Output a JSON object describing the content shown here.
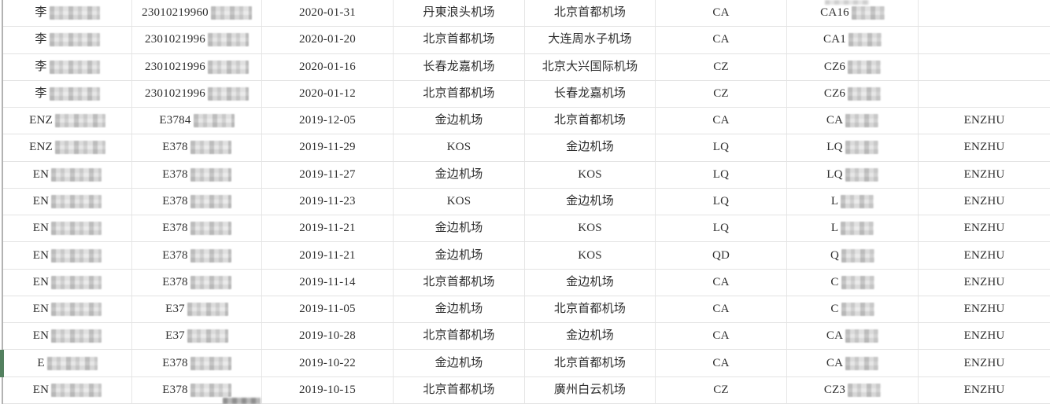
{
  "colors": {
    "background": "#ffffff",
    "grid_line": "#e3e3e3",
    "left_edge_line": "#b3b3b3",
    "row_marker_green": "#53805f",
    "text": "#2e2e2e",
    "mosaic_gray": "#dddddd"
  },
  "artifacts": {
    "selected_row_number": 14,
    "top_smudge": "redaction-bleed",
    "bottom_smudge": "redaction-bleed"
  },
  "table": {
    "column_keys": [
      "name",
      "id_number",
      "date",
      "departure",
      "arrival",
      "airline",
      "flight",
      "passenger"
    ],
    "redacted_columns": [
      "name",
      "id_number",
      "flight"
    ],
    "rows": [
      {
        "name": "李",
        "id_number": "23010219960",
        "date": "2020-01-31",
        "departure": "丹東浪头机场",
        "arrival": "北京首都机场",
        "airline": "CA",
        "flight": "CA16",
        "passenger": ""
      },
      {
        "name": "李",
        "id_number": "2301021996",
        "date": "2020-01-20",
        "departure": "北京首都机场",
        "arrival": "大连周水子机场",
        "airline": "CA",
        "flight": "CA1",
        "passenger": ""
      },
      {
        "name": "李",
        "id_number": "2301021996",
        "date": "2020-01-16",
        "departure": "长春龙嘉机场",
        "arrival": "北京大兴国际机场",
        "airline": "CZ",
        "flight": "CZ6",
        "passenger": ""
      },
      {
        "name": "李",
        "id_number": "2301021996",
        "date": "2020-01-12",
        "departure": "北京首都机场",
        "arrival": "长春龙嘉机场",
        "airline": "CZ",
        "flight": "CZ6",
        "passenger": ""
      },
      {
        "name": "ENZ",
        "id_number": "E3784",
        "date": "2019-12-05",
        "departure": "金边机场",
        "arrival": "北京首都机场",
        "airline": "CA",
        "flight": "CA",
        "passenger": "ENZHU"
      },
      {
        "name": "ENZ",
        "id_number": "E378",
        "date": "2019-11-29",
        "departure": "KOS",
        "arrival": "金边机场",
        "airline": "LQ",
        "flight": "LQ",
        "passenger": "ENZHU"
      },
      {
        "name": "EN",
        "id_number": "E378",
        "date": "2019-11-27",
        "departure": "金边机场",
        "arrival": "KOS",
        "airline": "LQ",
        "flight": "LQ",
        "passenger": "ENZHU"
      },
      {
        "name": "EN",
        "id_number": "E378",
        "date": "2019-11-23",
        "departure": "KOS",
        "arrival": "金边机场",
        "airline": "LQ",
        "flight": "L",
        "passenger": "ENZHU"
      },
      {
        "name": "EN",
        "id_number": "E378",
        "date": "2019-11-21",
        "departure": "金边机场",
        "arrival": "KOS",
        "airline": "LQ",
        "flight": "L",
        "passenger": "ENZHU"
      },
      {
        "name": "EN",
        "id_number": "E378",
        "date": "2019-11-21",
        "departure": "金边机场",
        "arrival": "KOS",
        "airline": "QD",
        "flight": "Q",
        "passenger": "ENZHU"
      },
      {
        "name": "EN",
        "id_number": "E378",
        "date": "2019-11-14",
        "departure": "北京首都机场",
        "arrival": "金边机场",
        "airline": "CA",
        "flight": "C",
        "passenger": "ENZHU"
      },
      {
        "name": "EN",
        "id_number": "E37",
        "date": "2019-11-05",
        "departure": "金边机场",
        "arrival": "北京首都机场",
        "airline": "CA",
        "flight": "C",
        "passenger": "ENZHU"
      },
      {
        "name": "EN",
        "id_number": "E37",
        "date": "2019-10-28",
        "departure": "北京首都机场",
        "arrival": "金边机场",
        "airline": "CA",
        "flight": "CA",
        "passenger": "ENZHU"
      },
      {
        "name": "E",
        "id_number": "E378",
        "date": "2019-10-22",
        "departure": "金边机场",
        "arrival": "北京首都机场",
        "airline": "CA",
        "flight": "CA",
        "passenger": "ENZHU"
      },
      {
        "name": "EN",
        "id_number": "E378",
        "date": "2019-10-15",
        "departure": "北京首都机场",
        "arrival": "廣州白云机场",
        "airline": "CZ",
        "flight": "CZ3",
        "passenger": "ENZHU"
      }
    ]
  }
}
